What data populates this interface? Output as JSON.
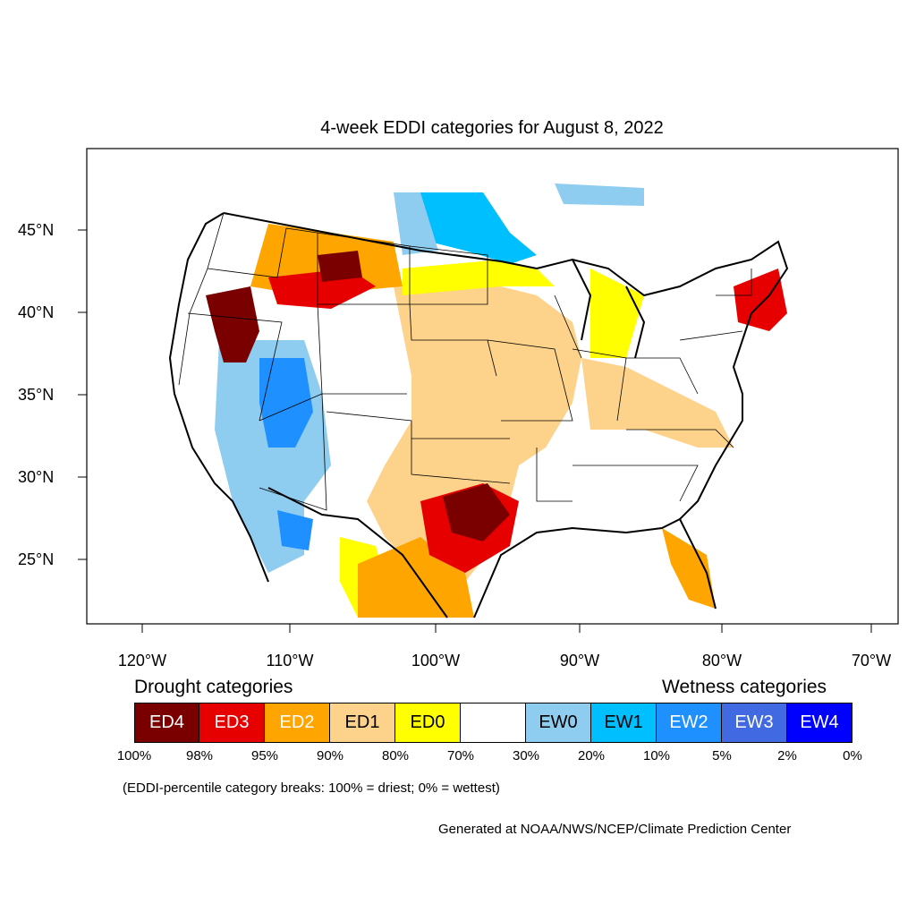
{
  "title": "4-week EDDI categories for August 8, 2022",
  "map": {
    "lat_labels": [
      "45°N",
      "40°N",
      "35°N",
      "30°N",
      "25°N"
    ],
    "lon_labels": [
      "120°W",
      "110°W",
      "100°W",
      "90°W",
      "80°W",
      "70°W"
    ],
    "regions": [
      {
        "name": "northwest-dry",
        "category": "ED4"
      },
      {
        "name": "texas-drought",
        "category": "ED4"
      },
      {
        "name": "southwest-wet",
        "category": "EW2"
      },
      {
        "name": "upper-midwest-wet",
        "category": "EW1"
      },
      {
        "name": "great-plains-dry",
        "category": "ED1"
      },
      {
        "name": "northeast-dry",
        "category": "ED3"
      },
      {
        "name": "florida-dry",
        "category": "ED2"
      }
    ]
  },
  "legend": {
    "drought_heading": "Drought categories",
    "wetness_heading": "Wetness categories",
    "categories": [
      {
        "label": "ED4",
        "color": "#7a0000",
        "text_color": "#ffffff"
      },
      {
        "label": "ED3",
        "color": "#e60000",
        "text_color": "#ffffff"
      },
      {
        "label": "ED2",
        "color": "#ffa500",
        "text_color": "#ffffff"
      },
      {
        "label": "ED1",
        "color": "#fdd28a",
        "text_color": "#000000"
      },
      {
        "label": "ED0",
        "color": "#ffff00",
        "text_color": "#000000"
      },
      {
        "label": "",
        "color": "#ffffff",
        "text_color": "#000000"
      },
      {
        "label": "EW0",
        "color": "#8fcdf0",
        "text_color": "#000000"
      },
      {
        "label": "EW1",
        "color": "#00bfff",
        "text_color": "#000000"
      },
      {
        "label": "EW2",
        "color": "#1e90ff",
        "text_color": "#ffffff"
      },
      {
        "label": "EW3",
        "color": "#4169e1",
        "text_color": "#ffffff"
      },
      {
        "label": "EW4",
        "color": "#0000ff",
        "text_color": "#ffffff"
      }
    ],
    "breaks": [
      "100%",
      "98%",
      "95%",
      "90%",
      "80%",
      "70%",
      "30%",
      "20%",
      "10%",
      "5%",
      "2%",
      "0%"
    ],
    "note": "(EDDI-percentile category breaks: 100% = driest; 0% = wettest)"
  },
  "credit": "Generated at NOAA/NWS/NCEP/Climate Prediction Center"
}
